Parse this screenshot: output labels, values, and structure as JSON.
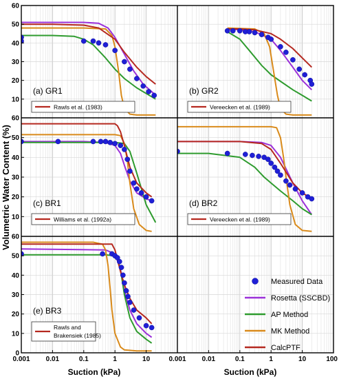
{
  "figure": {
    "ylabel": "Volumetric Water Content (%)",
    "xlabel_left": "Suction (kPa)",
    "xlabel_right": "Suction (kPa)",
    "y_ticks": [
      "0",
      "10",
      "20",
      "30",
      "40",
      "50",
      "60"
    ],
    "x_ticks_left": [
      "0.001",
      "0.01",
      "0.1",
      "1",
      "10"
    ],
    "x_ticks_right": [
      "0.001",
      "0.01",
      "0.1",
      "1",
      "10",
      "100"
    ]
  },
  "legend": {
    "items": [
      {
        "label": "Measured Data",
        "color": "#1f1fd6",
        "kind": "marker"
      },
      {
        "label": "Rosetta (SSCBD)",
        "color": "#9b30d9",
        "kind": "line"
      },
      {
        "label": "AP Method",
        "color": "#2e9b2e",
        "kind": "line"
      },
      {
        "label": "MK Method",
        "color": "#d98a1a",
        "kind": "line"
      },
      {
        "label": "CalcPTF",
        "color": "#b5281f",
        "kind": "line"
      }
    ]
  },
  "chart_data": [
    {
      "type": "line",
      "panel_label": "(a) GR1",
      "calc_label": "Rawls et al. (1983)",
      "x_scale": "log",
      "xlim": [
        0.001,
        20
      ],
      "ylim": [
        0,
        60
      ],
      "measured": {
        "x": [
          0.001,
          0.001,
          0.1,
          0.2,
          0.3,
          0.5,
          1,
          2,
          3,
          5,
          8,
          12,
          18
        ],
        "y": [
          43,
          41,
          41,
          41,
          40,
          39,
          36,
          30,
          26,
          21,
          17,
          14,
          12
        ]
      },
      "series": [
        {
          "key": "rosetta",
          "x": [
            0.001,
            0.01,
            0.1,
            0.3,
            0.6,
            1,
            2,
            4,
            8,
            15,
            20
          ],
          "y": [
            51,
            51,
            51,
            50.5,
            48,
            43,
            34,
            25,
            18,
            14,
            12
          ]
        },
        {
          "key": "ap",
          "x": [
            0.001,
            0.01,
            0.05,
            0.1,
            0.2,
            0.5,
            1,
            2,
            5,
            10,
            20
          ],
          "y": [
            44,
            44,
            43.5,
            42,
            39,
            32,
            26,
            21,
            16,
            13,
            10
          ]
        },
        {
          "key": "mk",
          "x": [
            0.001,
            0.1,
            0.5,
            0.8,
            1,
            1.3,
            1.6,
            2,
            3,
            5,
            20
          ],
          "y": [
            48,
            48,
            47.5,
            44,
            38,
            25,
            12,
            5,
            2,
            1.5,
            1.5
          ]
        },
        {
          "key": "calc",
          "x": [
            0.001,
            0.01,
            0.1,
            0.3,
            1,
            2,
            5,
            10,
            20
          ],
          "y": [
            50,
            50,
            49.5,
            48,
            42,
            35,
            27,
            22,
            18
          ]
        }
      ]
    },
    {
      "type": "line",
      "panel_label": "(b) GR2",
      "calc_label": "Vereecken et al. (1989)",
      "x_scale": "log",
      "xlim": [
        0.001,
        100
      ],
      "ylim": [
        0,
        60
      ],
      "measured": {
        "x": [
          0.04,
          0.06,
          0.1,
          0.15,
          0.2,
          0.3,
          0.5,
          0.8,
          1,
          2,
          3,
          5,
          8,
          12,
          18,
          20
        ],
        "y": [
          46.5,
          46.5,
          46.5,
          46,
          46,
          45.5,
          44.5,
          43,
          42,
          38,
          35,
          31,
          26,
          23,
          20,
          18
        ]
      },
      "series": [
        {
          "key": "rosetta",
          "x": [
            0.04,
            0.1,
            0.3,
            1,
            2,
            5,
            10,
            20
          ],
          "y": [
            47.5,
            47,
            46,
            42,
            36,
            27,
            20,
            15
          ]
        },
        {
          "key": "ap",
          "x": [
            0.04,
            0.1,
            0.2,
            0.5,
            1,
            2,
            5,
            10,
            20
          ],
          "y": [
            46,
            42,
            36,
            28,
            23,
            19.5,
            15,
            12,
            9
          ]
        },
        {
          "key": "mk",
          "x": [
            0.04,
            0.3,
            0.6,
            0.9,
            1.2,
            1.6,
            2,
            3,
            5,
            20
          ],
          "y": [
            48,
            47.5,
            45,
            38,
            25,
            12,
            5,
            2,
            1.5,
            1.5
          ]
        },
        {
          "key": "calc",
          "x": [
            0.04,
            0.1,
            0.3,
            1,
            2,
            5,
            10,
            20
          ],
          "y": [
            47.5,
            47.5,
            47,
            45,
            42,
            37,
            32,
            27
          ]
        }
      ]
    },
    {
      "type": "line",
      "panel_label": "(c) BR1",
      "calc_label": "Williams et al. (1992a)",
      "x_scale": "log",
      "xlim": [
        0.001,
        20
      ],
      "ylim": [
        0,
        60
      ],
      "measured": {
        "x": [
          0.001,
          0.015,
          0.2,
          0.35,
          0.5,
          0.7,
          1,
          1.5,
          2,
          2.5,
          3,
          4,
          5,
          7,
          10,
          15
        ],
        "y": [
          48,
          48,
          48,
          48,
          48,
          47.5,
          47,
          46,
          44,
          39,
          33,
          27,
          24,
          22,
          20,
          18
        ]
      },
      "series": [
        {
          "key": "rosetta",
          "x": [
            0.001,
            0.1,
            0.5,
            1,
            1.5,
            2,
            3,
            5,
            10,
            15
          ],
          "y": [
            48,
            48,
            47.5,
            46,
            42,
            36,
            28,
            22,
            19,
            18
          ]
        },
        {
          "key": "ap",
          "x": [
            0.001,
            0.1,
            1,
            2,
            3,
            5,
            10,
            20
          ],
          "y": [
            47.5,
            47.5,
            47.5,
            47,
            43,
            32,
            16,
            7
          ]
        },
        {
          "key": "mk",
          "x": [
            0.001,
            0.5,
            1,
            1.5,
            2,
            2.5,
            3,
            4,
            6,
            10,
            15
          ],
          "y": [
            51.5,
            51.5,
            51.5,
            51,
            47,
            38,
            27,
            14,
            6,
            3,
            2.5
          ]
        },
        {
          "key": "calc",
          "x": [
            0.001,
            0.5,
            1,
            1.2,
            1.5,
            2,
            3,
            5,
            10,
            15
          ],
          "y": [
            57,
            57,
            57,
            56,
            53,
            46,
            35,
            27,
            22,
            20
          ]
        }
      ]
    },
    {
      "type": "line",
      "panel_label": "(d) BR2",
      "calc_label": "Vereecken et al. (1989)",
      "x_scale": "log",
      "xlim": [
        0.001,
        100
      ],
      "ylim": [
        0,
        60
      ],
      "measured": {
        "x": [
          0.001,
          0.04,
          0.15,
          0.25,
          0.4,
          0.6,
          0.8,
          1,
          1.3,
          1.6,
          2,
          3,
          4,
          6,
          10,
          15,
          20
        ],
        "y": [
          43,
          42,
          41.5,
          41,
          40.5,
          40,
          39,
          37,
          35,
          33,
          31,
          28,
          26,
          24,
          22,
          20,
          19
        ]
      },
      "series": [
        {
          "key": "rosetta",
          "x": [
            0.001,
            0.1,
            0.5,
            1,
            2,
            5,
            10,
            20
          ],
          "y": [
            48,
            48,
            47.5,
            46,
            40,
            27,
            18,
            11
          ]
        },
        {
          "key": "ap",
          "x": [
            0.001,
            0.01,
            0.1,
            0.3,
            0.6,
            1,
            2,
            5,
            10,
            20
          ],
          "y": [
            42,
            42,
            40,
            35,
            30,
            27,
            23,
            18,
            14,
            11
          ]
        },
        {
          "key": "mk",
          "x": [
            0.001,
            0.5,
            1,
            1.5,
            2,
            2.5,
            3,
            4,
            6,
            10,
            20
          ],
          "y": [
            55.5,
            55.5,
            55.5,
            55,
            50,
            40,
            30,
            16,
            6,
            3,
            2.5
          ]
        },
        {
          "key": "calc",
          "x": [
            0.001,
            0.1,
            0.5,
            1,
            2,
            5,
            10,
            20
          ],
          "y": [
            48,
            48,
            47,
            44,
            37,
            27,
            22,
            19
          ]
        }
      ]
    },
    {
      "type": "line",
      "panel_label": "(e) BR3",
      "calc_label": "Rawls and Brakensiek (1985)",
      "x_scale": "log",
      "xlim": [
        0.001,
        20
      ],
      "ylim": [
        0,
        60
      ],
      "measured": {
        "x": [
          0.001,
          0.4,
          0.8,
          1,
          1.2,
          1.4,
          1.6,
          1.8,
          2,
          2.3,
          2.6,
          3,
          4,
          6,
          10,
          15
        ],
        "y": [
          51,
          51,
          51,
          50,
          49,
          47,
          44,
          40,
          36,
          32,
          29,
          26,
          22,
          18,
          14,
          13
        ]
      },
      "series": [
        {
          "key": "rosetta",
          "x": [
            0.001,
            0.5,
            1,
            1.5,
            2,
            3,
            5,
            10,
            15
          ],
          "y": [
            53.5,
            53,
            51,
            43,
            32,
            22,
            15,
            10,
            8
          ]
        },
        {
          "key": "ap",
          "x": [
            0.001,
            0.5,
            1,
            1.3,
            1.6,
            2,
            3,
            5,
            10,
            15
          ],
          "y": [
            50.5,
            50.5,
            50,
            47,
            40,
            30,
            18,
            11,
            7,
            5
          ]
        },
        {
          "key": "mk",
          "x": [
            0.001,
            0.2,
            0.4,
            0.5,
            0.6,
            0.7,
            0.8,
            1,
            1.5,
            2,
            5,
            15
          ],
          "y": [
            57,
            57,
            56,
            53,
            45,
            33,
            22,
            10,
            3,
            1.5,
            1,
            1
          ]
        },
        {
          "key": "calc",
          "x": [
            0.001,
            0.5,
            0.8,
            1,
            1.2,
            1.5,
            2,
            3,
            5,
            10,
            15
          ],
          "y": [
            56,
            56,
            56,
            53,
            48,
            42,
            35,
            28,
            22,
            18,
            15
          ]
        }
      ]
    }
  ]
}
